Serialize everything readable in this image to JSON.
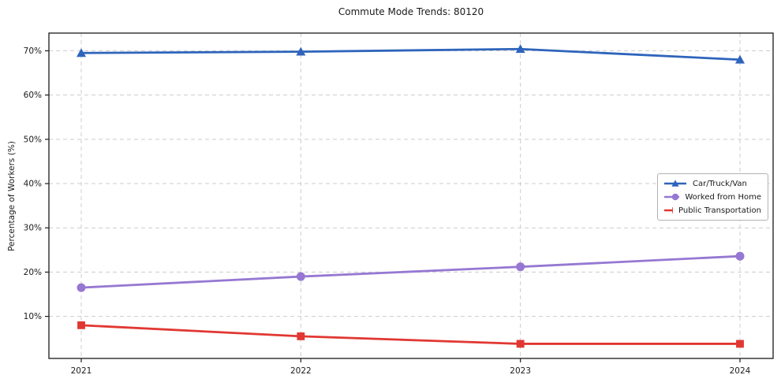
{
  "title": "Commute Mode Trends: 80120",
  "chart_data": {
    "type": "line",
    "title": "Commute Mode Trends: 80120",
    "xlabel": "",
    "ylabel": "Percentage of Workers (%)",
    "x": [
      2021,
      2022,
      2023,
      2024
    ],
    "xtick_labels": [
      "2021",
      "2022",
      "2023",
      "2024"
    ],
    "yticks": [
      10,
      20,
      30,
      40,
      50,
      60,
      70
    ],
    "ytick_labels": [
      "10%",
      "20%",
      "30%",
      "40%",
      "50%",
      "60%",
      "70%"
    ],
    "ylim": [
      0.5,
      74
    ],
    "grid": true,
    "legend_position": "center-right",
    "series": [
      {
        "name": "Car/Truck/Van",
        "values": [
          69.5,
          69.8,
          70.4,
          68.0
        ],
        "color": "#2e64bc",
        "marker": "triangle"
      },
      {
        "name": "Worked from Home",
        "values": [
          16.5,
          19.0,
          21.2,
          23.6
        ],
        "color": "#9678d2",
        "marker": "circle"
      },
      {
        "name": "Public Transportation",
        "values": [
          8.0,
          5.5,
          3.8,
          3.8
        ],
        "color": "#e13732",
        "marker": "square"
      }
    ]
  },
  "colors": {
    "grid": "#cccccc",
    "axis": "#1a1a1a",
    "text": "#1a1a1a",
    "legend_border": "#b3b3b3",
    "background": "#ffffff"
  }
}
